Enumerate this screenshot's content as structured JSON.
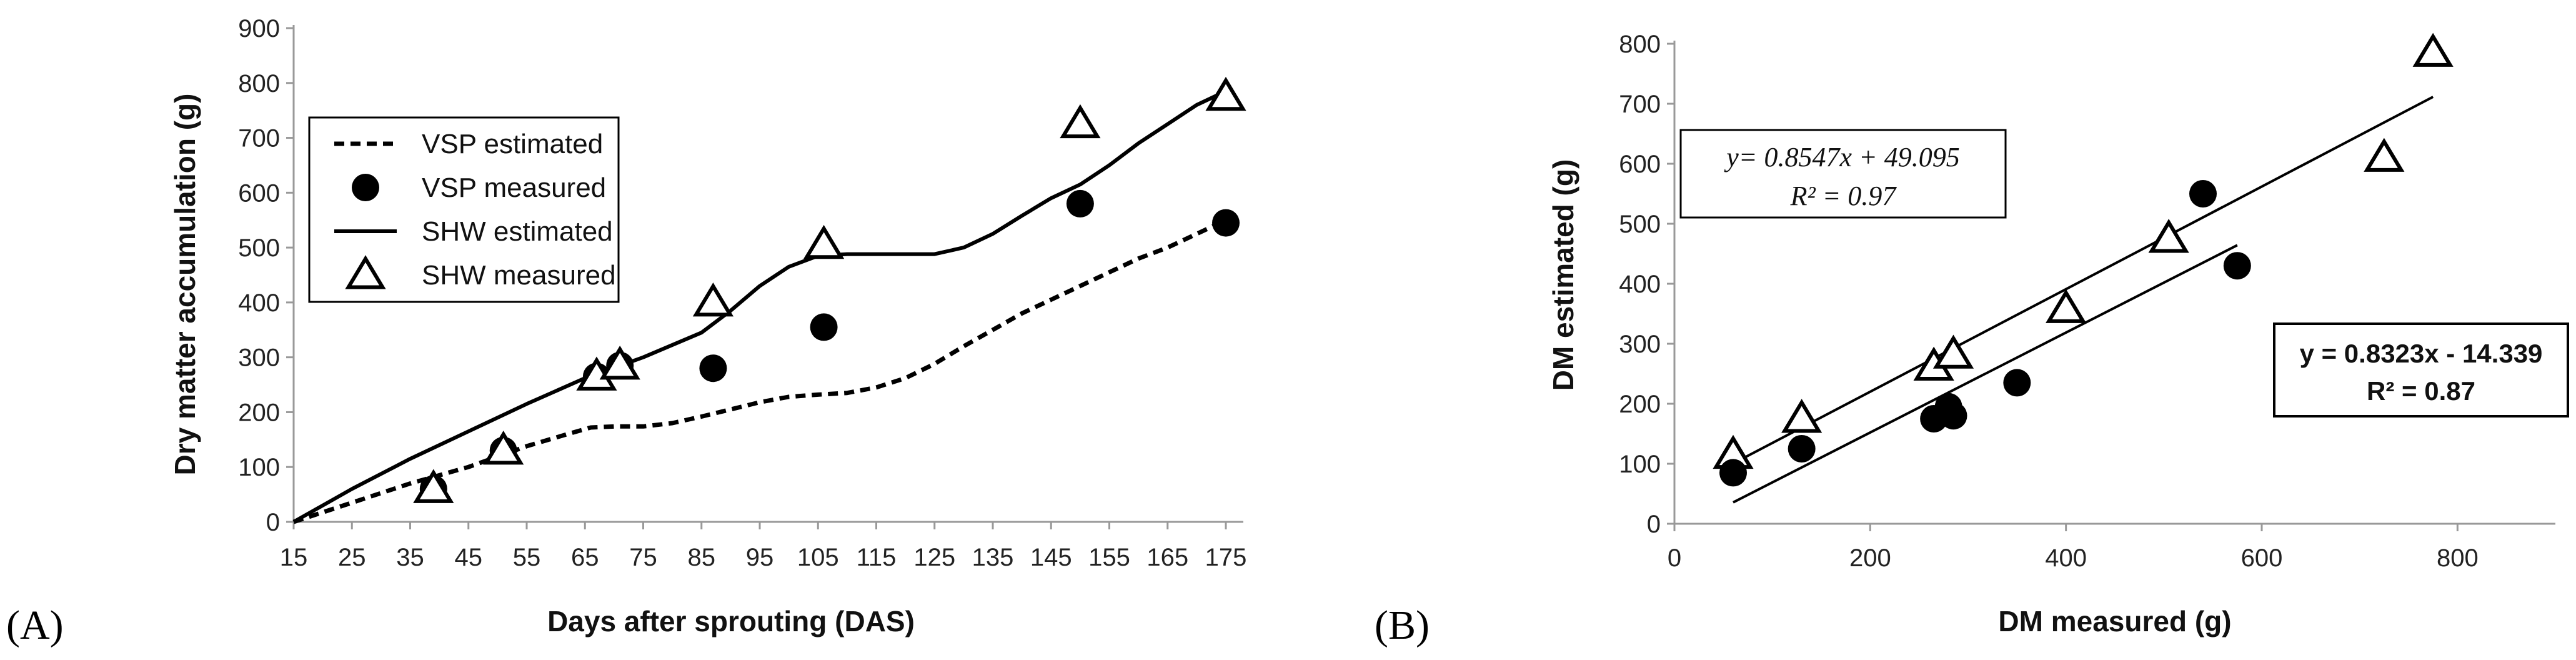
{
  "chart_data": [
    {
      "panel_label": "(A)",
      "type": "line",
      "xlabel": "Days after sprouting (DAS)",
      "ylabel": "Dry matter accumulation (g)",
      "xlim": [
        15,
        178
      ],
      "ylim": [
        0,
        900
      ],
      "x_ticks": [
        "15",
        "25",
        "35",
        "45",
        "55",
        "65",
        "75",
        "85",
        "95",
        "105",
        "115",
        "125",
        "135",
        "145",
        "155",
        "165",
        "175"
      ],
      "y_ticks": [
        "0",
        "100",
        "200",
        "300",
        "400",
        "500",
        "600",
        "700",
        "800",
        "900"
      ],
      "legend_position": "top-left",
      "series": [
        {
          "name": "VSP estimated",
          "style": "dashed",
          "color": "#000000",
          "x": [
            15,
            25,
            35,
            45,
            55,
            62,
            66,
            70,
            75,
            80,
            85,
            90,
            95,
            100,
            105,
            110,
            115,
            120,
            125,
            130,
            135,
            140,
            145,
            150,
            155,
            160,
            165,
            170,
            175
          ],
          "y": [
            0,
            35,
            70,
            100,
            138,
            160,
            172,
            174,
            174,
            180,
            192,
            205,
            218,
            228,
            232,
            235,
            245,
            262,
            288,
            320,
            350,
            380,
            405,
            430,
            455,
            480,
            500,
            525,
            550
          ]
        },
        {
          "name": "VSP measured",
          "style": "marker-circle",
          "color": "#000000",
          "x": [
            39,
            51,
            67,
            71,
            87,
            106,
            150,
            175
          ],
          "y": [
            60,
            130,
            265,
            285,
            280,
            355,
            580,
            545
          ]
        },
        {
          "name": "SHW estimated",
          "style": "solid",
          "color": "#000000",
          "x": [
            15,
            25,
            35,
            45,
            55,
            65,
            75,
            85,
            90,
            95,
            100,
            105,
            110,
            115,
            120,
            125,
            130,
            135,
            140,
            145,
            150,
            155,
            160,
            165,
            170,
            175
          ],
          "y": [
            0,
            60,
            115,
            165,
            215,
            262,
            300,
            345,
            385,
            430,
            465,
            485,
            488,
            488,
            488,
            488,
            500,
            525,
            558,
            590,
            615,
            650,
            690,
            725,
            760,
            785
          ]
        },
        {
          "name": "SHW measured",
          "style": "marker-triangle",
          "color": "#000000",
          "x": [
            39,
            51,
            67,
            71,
            87,
            106,
            150,
            175
          ],
          "y": [
            60,
            130,
            265,
            285,
            400,
            505,
            725,
            775
          ]
        }
      ]
    },
    {
      "panel_label": "(B)",
      "type": "scatter",
      "xlabel": "DM measured (g)",
      "ylabel": "DM estimated (g)",
      "xlim": [
        0,
        900
      ],
      "ylim": [
        0,
        800
      ],
      "x_ticks": [
        "0",
        "200",
        "400",
        "600",
        "800"
      ],
      "y_ticks": [
        "0",
        "100",
        "200",
        "300",
        "400",
        "500",
        "600",
        "700",
        "800"
      ],
      "series": [
        {
          "name": "",
          "style": "marker-triangle",
          "x": [
            60,
            130,
            265,
            285,
            400,
            505,
            725,
            775
          ],
          "y": [
            115,
            175,
            262,
            282,
            358,
            475,
            610,
            785
          ],
          "trendline": {
            "slope": 0.8547,
            "intercept": 49.095,
            "x_range": [
              60,
              775
            ]
          },
          "equation": "y= 0.8547x + 49.095",
          "r2": "R² = 0.97",
          "equation_style": "italic"
        },
        {
          "name": "",
          "style": "marker-circle",
          "x": [
            60,
            130,
            265,
            280,
            285,
            350,
            540,
            575
          ],
          "y": [
            85,
            125,
            175,
            195,
            180,
            235,
            550,
            430
          ],
          "trendline": {
            "slope": 0.8323,
            "intercept": -14.339,
            "x_range": [
              60,
              575
            ]
          },
          "equation": "y = 0.8323x - 14.339",
          "r2": "R² = 0.87",
          "equation_style": "bold"
        }
      ]
    }
  ]
}
